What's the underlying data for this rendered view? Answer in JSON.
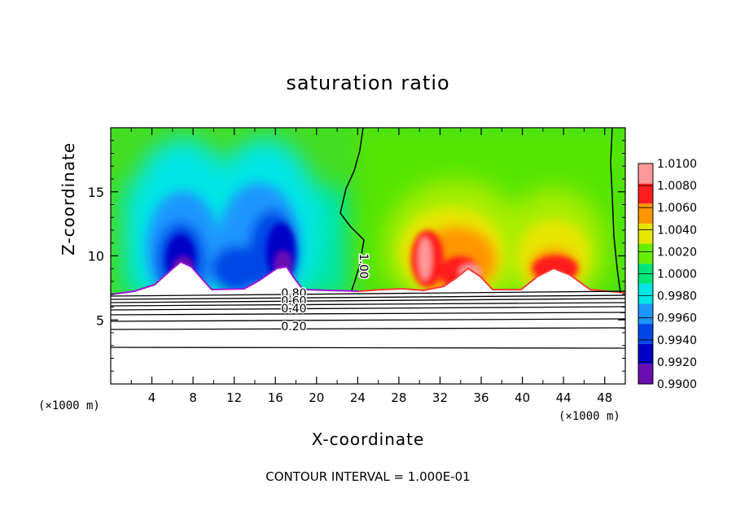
{
  "chart_data": {
    "type": "heatmap",
    "title": "saturation ratio",
    "xlabel": "X-coordinate",
    "ylabel": "Z-coordinate",
    "x_unit_left": "(×1000 m)",
    "x_unit_right": "(×1000 m)",
    "footer": "CONTOUR INTERVAL = 1.000E-01",
    "xlim": [
      0,
      50
    ],
    "ylim": [
      0,
      20
    ],
    "x_ticks": [
      "4",
      "8",
      "12",
      "16",
      "20",
      "24",
      "28",
      "32",
      "36",
      "40",
      "44",
      "48"
    ],
    "y_ticks": [
      "5",
      "10",
      "15"
    ],
    "colorbar": {
      "levels": [
        "0.9900",
        "0.9920",
        "0.9940",
        "0.9960",
        "0.9980",
        "1.0000",
        "1.0020",
        "1.0040",
        "1.0060",
        "1.0080",
        "1.0100"
      ],
      "colors": [
        "#6a0db0",
        "#0000c8",
        "#0046e6",
        "#1e96ff",
        "#00e6e6",
        "#00e678",
        "#66ee00",
        "#e6e600",
        "#ff9600",
        "#ff1e1e",
        "#ff9a9a"
      ]
    },
    "contour_labels": [
      {
        "text": "1.00",
        "x": 24.2,
        "z": 9.2,
        "rotation": 90
      },
      {
        "text": "0.80",
        "x": 17.8,
        "z": 6.8
      },
      {
        "text": "0.60",
        "x": 17.8,
        "z": 6.2
      },
      {
        "text": "0.40",
        "x": 17.8,
        "z": 5.6
      },
      {
        "text": "0.20",
        "x": 17.8,
        "z": 4.2
      }
    ]
  }
}
